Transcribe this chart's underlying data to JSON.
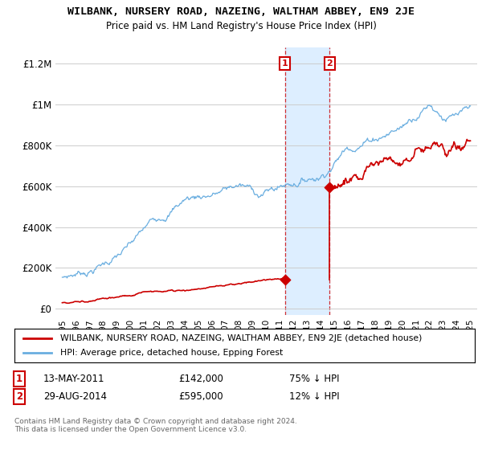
{
  "title": "WILBANK, NURSERY ROAD, NAZEING, WALTHAM ABBEY, EN9 2JE",
  "subtitle": "Price paid vs. HM Land Registry's House Price Index (HPI)",
  "legend_line1": "WILBANK, NURSERY ROAD, NAZEING, WALTHAM ABBEY, EN9 2JE (detached house)",
  "legend_line2": "HPI: Average price, detached house, Epping Forest",
  "transaction1_date": "13-MAY-2011",
  "transaction1_price": 142000,
  "transaction1_label": "75% ↓ HPI",
  "transaction2_date": "29-AUG-2014",
  "transaction2_price": 595000,
  "transaction2_label": "12% ↓ HPI",
  "transaction1_year": 2011.37,
  "transaction2_year": 2014.66,
  "ylabel_ticks": [
    "£0",
    "£200K",
    "£400K",
    "£600K",
    "£800K",
    "£1M",
    "£1.2M"
  ],
  "ytick_values": [
    0,
    200000,
    400000,
    600000,
    800000,
    1000000,
    1200000
  ],
  "ylim": [
    0,
    1280000
  ],
  "xlim_start": 1994.5,
  "xlim_end": 2025.5,
  "hpi_color": "#6aaee0",
  "price_color": "#cc0000",
  "shade_color": "#ddeeff",
  "marker_box_color": "#cc0000",
  "copyright_text": "Contains HM Land Registry data © Crown copyright and database right 2024.\nThis data is licensed under the Open Government Licence v3.0.",
  "background_color": "#ffffff",
  "grid_color": "#cccccc"
}
